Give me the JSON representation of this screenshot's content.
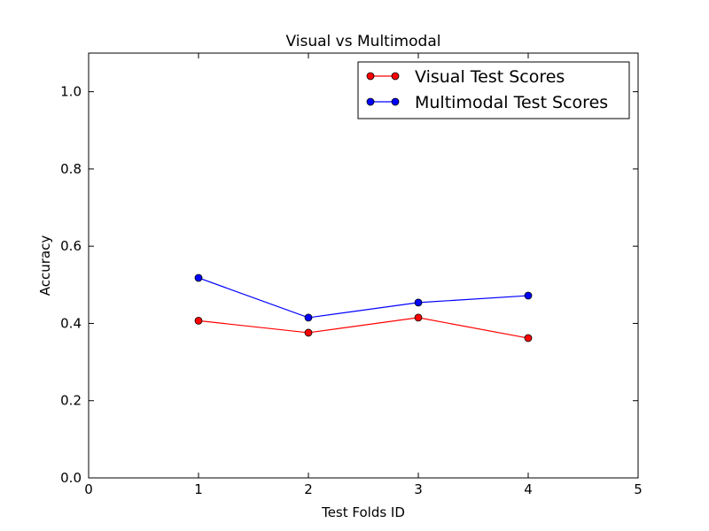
{
  "chart_data": {
    "type": "line",
    "title": "Visual vs Multimodal",
    "xlabel": "Test Folds ID",
    "ylabel": "Accuracy",
    "xlim": [
      0,
      5
    ],
    "ylim": [
      0.0,
      1.1
    ],
    "xticks": [
      "0",
      "1",
      "2",
      "3",
      "4",
      "5"
    ],
    "yticks": [
      "0.0",
      "0.2",
      "0.4",
      "0.6",
      "0.8",
      "1.0"
    ],
    "grid": false,
    "legend_position": "top-right",
    "x": [
      1,
      2,
      3,
      4
    ],
    "series": [
      {
        "name": "Visual Test Scores",
        "color": "#ff0000",
        "values": [
          0.407,
          0.376,
          0.415,
          0.362
        ]
      },
      {
        "name": "Multimodal Test Scores",
        "color": "#0000ff",
        "values": [
          0.518,
          0.415,
          0.454,
          0.472
        ]
      }
    ]
  }
}
